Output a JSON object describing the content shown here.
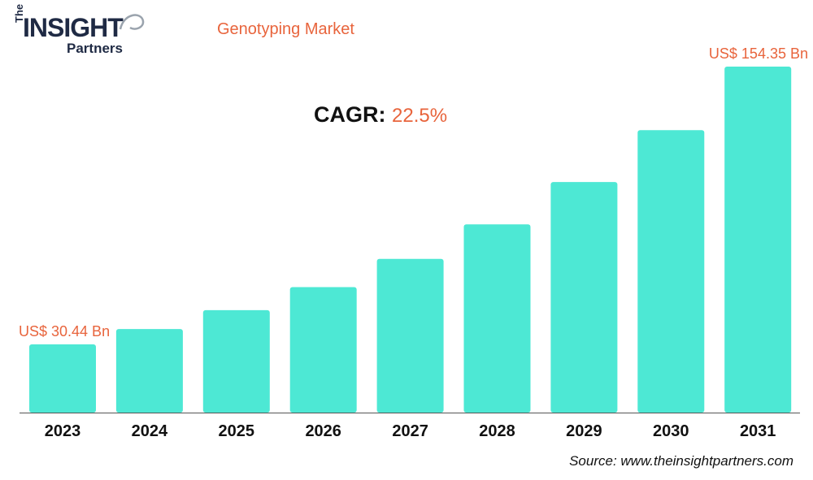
{
  "logo": {
    "the": "The",
    "insight": "INSIGHT",
    "partners": "Partners"
  },
  "title": "Genotyping Market",
  "cagr": {
    "label": "CAGR:",
    "value": "22.5%"
  },
  "source": "Source: www.theinsightpartners.com",
  "colors": {
    "bar": "#4de8d4",
    "accent": "#e8643c",
    "text": "#111111",
    "logo": "#1f2a44"
  },
  "chart_data": {
    "type": "bar",
    "categories": [
      "2023",
      "2024",
      "2025",
      "2026",
      "2027",
      "2028",
      "2029",
      "2030",
      "2031"
    ],
    "values": [
      30.44,
      37.29,
      45.68,
      55.96,
      68.55,
      83.97,
      102.86,
      126.0,
      154.35
    ],
    "data_labels": [
      {
        "index": 0,
        "text": "US$ 30.44 Bn"
      },
      {
        "index": 8,
        "text": "US$ 154.35 Bn"
      }
    ],
    "ylim": [
      0,
      160
    ],
    "grid": false,
    "xlabel": "",
    "ylabel": ""
  }
}
